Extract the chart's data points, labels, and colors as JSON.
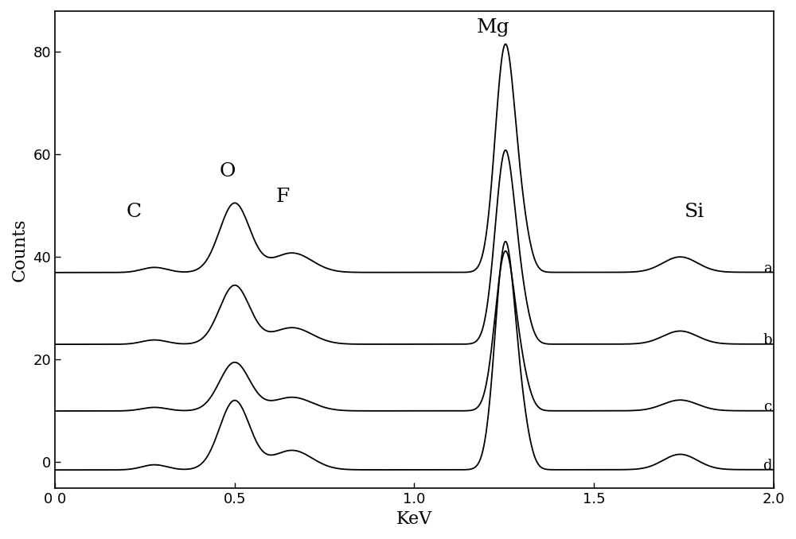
{
  "title": "",
  "xlabel": "KeV",
  "ylabel": "Counts",
  "xlim": [
    0,
    2.0
  ],
  "ylim": [
    -5,
    88
  ],
  "yticks": [
    0,
    20,
    40,
    60,
    80
  ],
  "xticks": [
    0.0,
    0.5,
    1.0,
    1.5,
    2.0
  ],
  "xtick_labels": [
    "0 0",
    "0.5",
    "1.0",
    "1.5",
    "2.0"
  ],
  "series_labels": [
    "a",
    "b",
    "c",
    "d"
  ],
  "series_offsets": [
    37,
    23,
    10,
    -1.5
  ],
  "peak_positions": {
    "C": 0.277,
    "O": 0.5,
    "F": 0.66,
    "Mg": 1.253,
    "Mg2": 1.302,
    "Si": 1.74
  },
  "ann_C": [
    0.22,
    47
  ],
  "ann_O": [
    0.48,
    55
  ],
  "ann_F": [
    0.635,
    50
  ],
  "ann_Mg": [
    1.22,
    83
  ],
  "ann_Si": [
    1.78,
    47
  ],
  "background_color": "#ffffff",
  "line_color": "#000000"
}
